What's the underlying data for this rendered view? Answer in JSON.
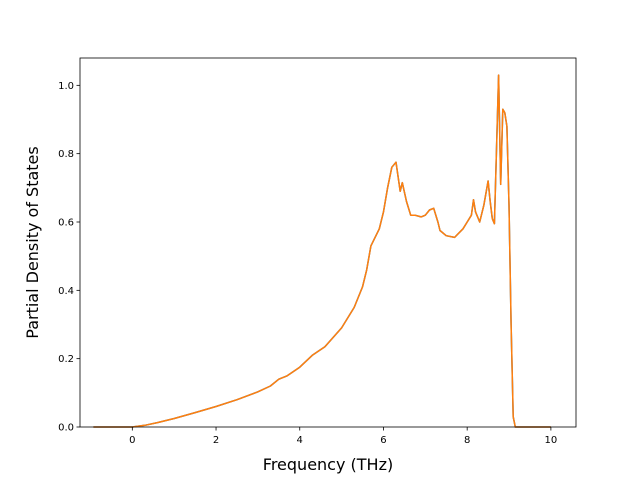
{
  "chart_data": {
    "type": "line",
    "title": "",
    "xlabel": "Frequency (THz)",
    "ylabel": "Partial Density of States",
    "xlim": [
      -1.25,
      10.6
    ],
    "ylim": [
      0.0,
      1.08
    ],
    "xticks": [
      0,
      2,
      4,
      6,
      8,
      10
    ],
    "xtick_labels": [
      "0",
      "2",
      "4",
      "6",
      "8",
      "10"
    ],
    "yticks": [
      0.0,
      0.2,
      0.4,
      0.6,
      0.8,
      1.0
    ],
    "ytick_labels": [
      "0.0",
      "0.2",
      "0.4",
      "0.6",
      "0.8",
      "1.0"
    ],
    "grid": false,
    "series": [
      {
        "color": "#1f77b4",
        "x": [
          -0.93,
          0.0,
          0.3,
          0.6,
          1.0,
          1.5,
          2.0,
          2.5,
          3.0,
          3.3,
          3.5,
          3.7,
          4.0,
          4.3,
          4.6,
          5.0,
          5.3,
          5.5,
          5.6,
          5.7,
          5.9,
          6.0,
          6.1,
          6.2,
          6.3,
          6.4,
          6.45,
          6.55,
          6.65,
          6.75,
          6.9,
          7.0,
          7.1,
          7.2,
          7.3,
          7.35,
          7.5,
          7.7,
          7.9,
          8.0,
          8.1,
          8.15,
          8.2,
          8.3,
          8.4,
          8.5,
          8.55,
          8.6,
          8.65,
          8.75,
          8.8,
          8.85,
          8.9,
          8.95,
          9.0,
          9.05,
          9.1,
          9.15,
          9.16,
          9.2,
          9.4,
          10.0
        ],
        "y": [
          0.0,
          0.0,
          0.005,
          0.013,
          0.025,
          0.042,
          0.06,
          0.08,
          0.103,
          0.12,
          0.14,
          0.15,
          0.175,
          0.21,
          0.235,
          0.29,
          0.35,
          0.41,
          0.46,
          0.53,
          0.58,
          0.63,
          0.7,
          0.76,
          0.775,
          0.69,
          0.715,
          0.66,
          0.62,
          0.62,
          0.615,
          0.62,
          0.635,
          0.64,
          0.6,
          0.575,
          0.56,
          0.555,
          0.58,
          0.6,
          0.62,
          0.665,
          0.63,
          0.6,
          0.65,
          0.72,
          0.66,
          0.61,
          0.595,
          1.03,
          0.71,
          0.93,
          0.92,
          0.88,
          0.65,
          0.3,
          0.03,
          0.0,
          0.0,
          0.0,
          0.0,
          0.0
        ]
      },
      {
        "color": "#ff7f0e",
        "x": [
          -0.93,
          0.0,
          0.3,
          0.6,
          1.0,
          1.5,
          2.0,
          2.5,
          3.0,
          3.3,
          3.5,
          3.7,
          4.0,
          4.3,
          4.6,
          5.0,
          5.3,
          5.5,
          5.6,
          5.7,
          5.9,
          6.0,
          6.1,
          6.2,
          6.3,
          6.4,
          6.45,
          6.55,
          6.65,
          6.75,
          6.9,
          7.0,
          7.1,
          7.2,
          7.3,
          7.35,
          7.5,
          7.7,
          7.9,
          8.0,
          8.1,
          8.15,
          8.2,
          8.3,
          8.4,
          8.5,
          8.55,
          8.6,
          8.65,
          8.75,
          8.8,
          8.85,
          8.9,
          8.95,
          9.0,
          9.05,
          9.1,
          9.15,
          9.16,
          9.2,
          9.4,
          10.0
        ],
        "y": [
          0.0,
          0.0,
          0.005,
          0.013,
          0.025,
          0.042,
          0.06,
          0.08,
          0.103,
          0.12,
          0.14,
          0.15,
          0.175,
          0.21,
          0.235,
          0.29,
          0.35,
          0.41,
          0.46,
          0.53,
          0.58,
          0.63,
          0.7,
          0.76,
          0.775,
          0.69,
          0.715,
          0.66,
          0.62,
          0.62,
          0.615,
          0.62,
          0.635,
          0.64,
          0.6,
          0.575,
          0.56,
          0.555,
          0.58,
          0.6,
          0.62,
          0.665,
          0.63,
          0.6,
          0.65,
          0.72,
          0.66,
          0.61,
          0.595,
          1.03,
          0.71,
          0.93,
          0.92,
          0.88,
          0.65,
          0.3,
          0.03,
          0.0,
          0.0,
          0.0,
          0.0,
          0.0
        ]
      }
    ]
  }
}
